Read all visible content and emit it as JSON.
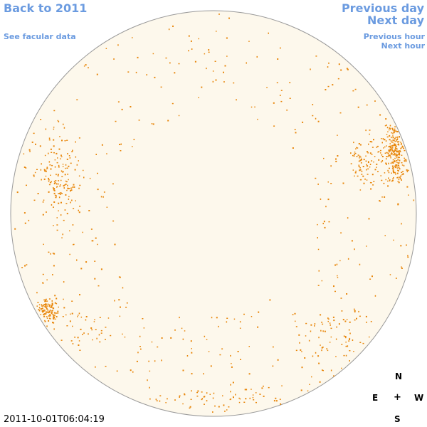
{
  "nav": {
    "back": "Back to 2011",
    "facular": "See facular data",
    "previous_day": "Previous day",
    "next_day": "Next day",
    "previous_hour": "Previous hour",
    "next_hour": "Next hour"
  },
  "timestamp": "2011-10-01T06:04:19",
  "compass": {
    "north": "N",
    "east": "E",
    "center": "+",
    "west": "W",
    "south": "S"
  },
  "colors": {
    "disk_fill": "#fdf8ec",
    "disk_stroke": "#999999",
    "feature": "#e8860a",
    "link": "#6b9be0"
  }
}
